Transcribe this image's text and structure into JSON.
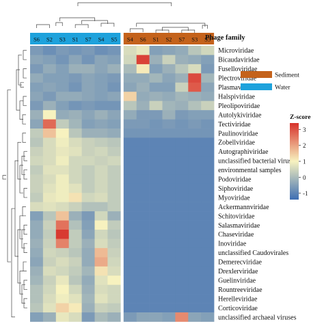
{
  "chart_data": {
    "type": "heatmap",
    "title": "",
    "column_header_label": "Phage family",
    "groups": [
      {
        "name": "Water",
        "color": "#1ea2dc",
        "columns": [
          "S6",
          "S2",
          "S3",
          "S1",
          "S7",
          "S4",
          "S5"
        ]
      },
      {
        "name": "Sediment",
        "color": "#c4621b",
        "columns": [
          "S4",
          "S6",
          "S1",
          "S2",
          "S7",
          "S3",
          "S5"
        ]
      }
    ],
    "legend": {
      "title": "Z-score",
      "ticks": [
        3,
        2,
        1,
        0,
        -1
      ],
      "range": [
        -1.4,
        3.4
      ],
      "colors": [
        "#3e6eb3",
        "#f7f2bf",
        "#d7322b"
      ]
    },
    "rows": [
      "Microviridae",
      "Bicaudaviridae",
      "Fuselloviridae",
      "Plectroviridae",
      "Plasmaviridae",
      "Halspiviridae",
      "Pleolipoviridae",
      "Autolykiviridae",
      "Tectiviridae",
      "Paulinoviridae",
      "Zobellviridae",
      "Autographiviridae",
      "unclassified bacterial virus",
      "environmental samples",
      "Podoviridae",
      "Siphoviridae",
      "Myoviridae",
      "Ackermannviridae",
      "Schitoviridae",
      "Salasmaviridae",
      "Chaseviridae",
      "Inoviridae",
      "unclassified Caudovirales",
      "Demerecviridae",
      "Drexlerviridae",
      "Guelinviridae",
      "Rountreeviridae",
      "Herelleviridae",
      "Corticoviridae",
      "unclassified archaeal viruses"
    ],
    "values": [
      [
        -0.6,
        -0.8,
        -0.6,
        -0.7,
        -0.6,
        -0.8,
        -0.7,
        0.6,
        0.8,
        -0.5,
        -0.4,
        -0.3,
        0.2,
        0.5
      ],
      [
        -0.4,
        -0.5,
        -0.7,
        -0.4,
        -0.7,
        -0.4,
        -0.5,
        0.5,
        3.2,
        -0.2,
        0.4,
        -0.2,
        -0.3,
        -0.5
      ],
      [
        -0.6,
        -0.3,
        -0.5,
        -0.2,
        -0.2,
        -0.4,
        -0.2,
        0.0,
        1.1,
        -0.5,
        -0.2,
        0.2,
        0.6,
        -0.6
      ],
      [
        -0.3,
        -0.5,
        -0.5,
        -0.6,
        -0.4,
        -0.5,
        -0.6,
        -0.3,
        -0.3,
        -0.1,
        -0.4,
        -0.2,
        3.1,
        -0.1
      ],
      [
        -0.5,
        -0.4,
        -0.5,
        -0.7,
        -0.4,
        -0.5,
        -0.7,
        -0.4,
        -0.2,
        -0.5,
        -0.5,
        0.4,
        2.9,
        -0.4
      ],
      [
        -0.4,
        -0.6,
        -0.3,
        -0.3,
        -0.4,
        -0.5,
        -0.4,
        1.4,
        -0.3,
        -0.2,
        -0.3,
        -0.1,
        -0.2,
        -0.3
      ],
      [
        -0.6,
        -0.2,
        -0.5,
        -0.7,
        -0.6,
        -0.7,
        -0.7,
        0.2,
        -0.2,
        0.4,
        -0.1,
        -0.2,
        0.1,
        0.4
      ],
      [
        -0.2,
        1.0,
        -0.3,
        -0.2,
        -0.4,
        -0.2,
        -0.4,
        -0.3,
        -0.6,
        -0.6,
        -0.2,
        -0.6,
        -0.5,
        -0.5
      ],
      [
        -0.4,
        2.7,
        0.3,
        -0.1,
        -0.5,
        -0.4,
        -0.5,
        -0.6,
        -0.6,
        -0.7,
        -0.6,
        -0.7,
        -0.6,
        -0.7
      ],
      [
        0.3,
        1.6,
        1.0,
        0.2,
        -0.2,
        -0.2,
        -0.3,
        -0.7,
        -0.7,
        -0.7,
        -0.7,
        -0.7,
        -0.7,
        -0.7
      ],
      [
        0.2,
        0.6,
        0.9,
        0.6,
        0.4,
        0.3,
        0.2,
        -1.0,
        -1.0,
        -1.0,
        -1.0,
        -1.0,
        -1.0,
        -1.0
      ],
      [
        0.4,
        0.6,
        0.8,
        0.7,
        0.4,
        0.5,
        0.3,
        -1.0,
        -1.0,
        -1.0,
        -1.0,
        -1.0,
        -1.0,
        -1.0
      ],
      [
        0.5,
        0.6,
        0.9,
        0.5,
        0.5,
        0.4,
        0.5,
        -1.0,
        -1.0,
        -1.0,
        -1.0,
        -1.0,
        -1.0,
        -1.0
      ],
      [
        0.3,
        0.7,
        0.7,
        0.5,
        0.3,
        0.5,
        0.3,
        -1.0,
        -1.0,
        -1.0,
        -1.0,
        -1.0,
        -1.0,
        -1.0
      ],
      [
        0.4,
        0.6,
        0.9,
        0.5,
        0.3,
        0.5,
        0.3,
        -1.0,
        -1.0,
        -1.0,
        -1.0,
        -1.0,
        -1.0,
        -1.0
      ],
      [
        0.4,
        0.7,
        0.9,
        0.7,
        0.3,
        0.5,
        0.3,
        -1.0,
        -1.0,
        -1.0,
        -1.0,
        -1.0,
        -1.0,
        -1.0
      ],
      [
        0.3,
        0.8,
        0.9,
        1.2,
        0.5,
        0.6,
        0.3,
        -1.0,
        -1.0,
        -1.0,
        -1.0,
        -1.0,
        -1.0,
        -1.0
      ],
      [
        0.6,
        0.7,
        0.6,
        0.4,
        0.1,
        0.1,
        0.3,
        -1.0,
        -1.0,
        -1.0,
        -1.0,
        -1.0,
        -1.0,
        -1.0
      ],
      [
        -0.5,
        0.2,
        1.6,
        -0.2,
        -0.6,
        0.5,
        -0.2,
        -1.0,
        -1.0,
        -1.0,
        -1.0,
        -1.0,
        -1.0,
        -1.0
      ],
      [
        -0.3,
        0.4,
        2.6,
        0.1,
        -0.5,
        1.0,
        0.3,
        -1.0,
        -1.0,
        -1.0,
        -1.0,
        -1.0,
        -1.0,
        -1.0
      ],
      [
        -0.3,
        0.3,
        3.3,
        0.3,
        -0.4,
        0.5,
        0.2,
        -1.0,
        -1.0,
        -1.0,
        -1.0,
        -1.0,
        -1.0,
        -1.0
      ],
      [
        -0.2,
        0.4,
        2.4,
        0.3,
        -0.2,
        0.6,
        0.3,
        -1.0,
        -1.0,
        -1.0,
        -1.0,
        -1.0,
        -1.0,
        -1.0
      ],
      [
        -0.3,
        0.5,
        0.4,
        0.2,
        -0.3,
        1.7,
        0.4,
        -1.0,
        -1.0,
        -1.0,
        -1.0,
        -1.0,
        -1.0,
        -1.0
      ],
      [
        -0.4,
        0.4,
        0.6,
        0.4,
        -0.3,
        1.9,
        0.5,
        -1.0,
        -1.0,
        -1.0,
        -1.0,
        -1.0,
        -1.0,
        -1.0
      ],
      [
        -0.2,
        0.6,
        0.5,
        0.3,
        -0.1,
        1.2,
        0.6,
        -1.0,
        -1.0,
        -1.0,
        -1.0,
        -1.0,
        -1.0,
        -1.0
      ],
      [
        -0.1,
        0.4,
        0.8,
        0.2,
        -0.3,
        0.7,
        1.0,
        -1.0,
        -1.0,
        -1.0,
        -1.0,
        -1.0,
        -1.0,
        -1.0
      ],
      [
        0.1,
        0.5,
        1.0,
        0.5,
        -0.2,
        0.6,
        0.5,
        -1.0,
        -1.0,
        -1.0,
        -1.0,
        -1.0,
        -1.0,
        -1.0
      ],
      [
        0.1,
        0.6,
        0.9,
        0.7,
        -0.1,
        0.7,
        0.5,
        -1.0,
        -1.0,
        -1.0,
        -1.0,
        -1.0,
        -1.0,
        -1.0
      ],
      [
        0.2,
        0.7,
        1.4,
        1.1,
        -0.2,
        0.4,
        0.3,
        -1.0,
        -1.0,
        -1.0,
        -1.0,
        -1.0,
        -1.0,
        -1.0
      ],
      [
        -0.5,
        -0.2,
        0.8,
        0.6,
        -0.6,
        0.0,
        -0.2,
        -0.6,
        -0.4,
        -0.4,
        -0.5,
        2.3,
        -0.4,
        -0.5
      ]
    ]
  }
}
